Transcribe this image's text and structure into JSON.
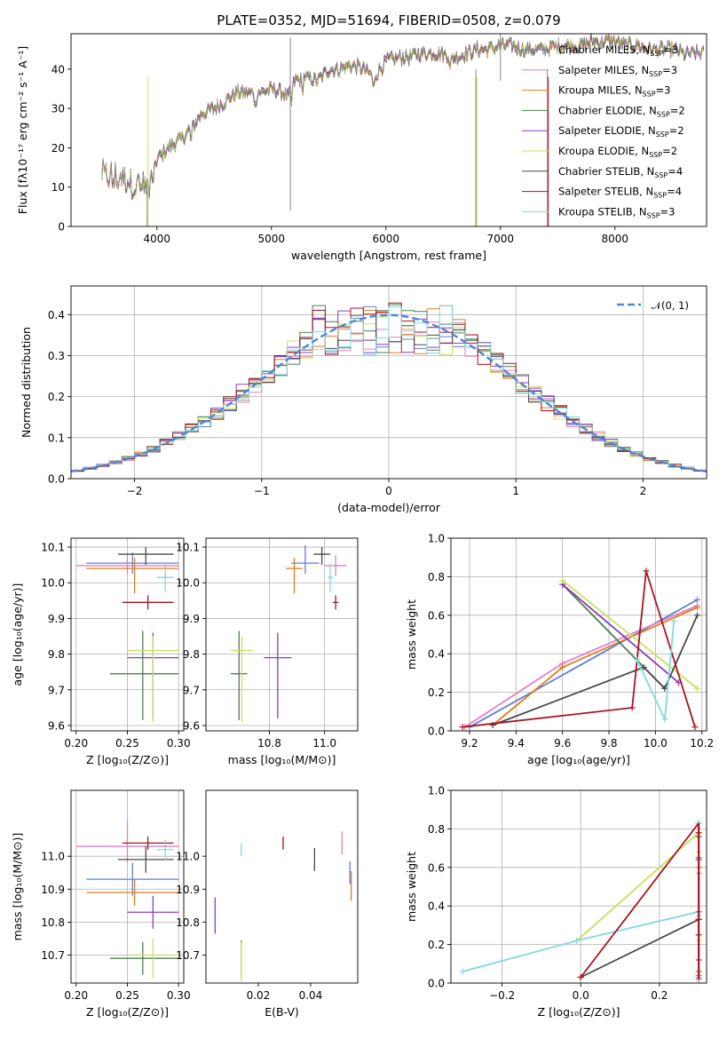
{
  "figure_title": "PLATE=0352, MJD=51694, FIBERID=0508, z=0.079",
  "colors": {
    "Chabrier MILES": "#5b7fd9",
    "Salpeter MILES": "#e47fc2",
    "Kroupa MILES": "#e07b1f",
    "Chabrier ELODIE": "#4f7f4f",
    "Salpeter ELODIE": "#8d3db8",
    "Kroupa ELODIE": "#c8e05a",
    "Chabrier STELIB": "#4a4a4a",
    "Salpeter STELIB": "#a8141e",
    "Kroupa STELIB": "#7fd9e0",
    "normal": "#4f84d8"
  },
  "chart_data": [
    {
      "type": "line",
      "id": "spectrum",
      "xlabel": "wavelength [Angstrom, rest frame]",
      "ylabel": "Flux [fλ10⁻¹⁷ erg cm⁻² s⁻¹ A⁻¹]",
      "xlim": [
        3250,
        8800
      ],
      "ylim": [
        0,
        49
      ],
      "xticks": [
        4000,
        5000,
        6000,
        7000,
        8000
      ],
      "yticks": [
        0,
        10,
        20,
        30,
        40
      ],
      "grid": false,
      "legend_position": "top-right",
      "continuum": {
        "wavelength": [
          3520,
          3600,
          3700,
          3800,
          3900,
          3950,
          4000,
          4100,
          4200,
          4300,
          4400,
          4500,
          4600,
          4700,
          4800,
          4900,
          5000,
          5100,
          5150,
          5200,
          5300,
          5400,
          5500,
          5600,
          5700,
          5800,
          5900,
          6000,
          6100,
          6200,
          6300,
          6400,
          6500,
          6600,
          6700,
          6800,
          6900,
          7000,
          7100,
          7200,
          7300,
          7400,
          7500,
          7600,
          7700,
          7800,
          7900,
          8000,
          8100,
          8200,
          8300,
          8400,
          8500,
          8600,
          8700,
          8780
        ],
        "flux": [
          13,
          12,
          12,
          11,
          10,
          13,
          17,
          20,
          22,
          25,
          29,
          30,
          32,
          34,
          34,
          34,
          35,
          34,
          33,
          37,
          38,
          37,
          40,
          40,
          41,
          40,
          38,
          42,
          43,
          43,
          44,
          44,
          44,
          43,
          44,
          45,
          45,
          46,
          46,
          45,
          45,
          45,
          46,
          46,
          46,
          47,
          47,
          47,
          46,
          46,
          45,
          45,
          45,
          44,
          44,
          44
        ]
      },
      "series": [
        {
          "name": "Chabrier MILES, N$_{SSP}$=3",
          "label": "Chabrier MILES, N",
          "sub": "SSP",
          "suffix": "=3"
        },
        {
          "name": "Salpeter MILES, N$_{SSP}$=3",
          "label": "Salpeter MILES, N",
          "sub": "SSP",
          "suffix": "=3"
        },
        {
          "name": "Kroupa MILES, N$_{SSP}$=3",
          "label": "Kroupa MILES, N",
          "sub": "SSP",
          "suffix": "=3"
        },
        {
          "name": "Chabrier ELODIE, N$_{SSP}$=2",
          "label": "Chabrier ELODIE, N",
          "sub": "SSP",
          "suffix": "=2"
        },
        {
          "name": "Salpeter ELODIE, N$_{SSP}$=2",
          "label": "Salpeter ELODIE, N",
          "sub": "SSP",
          "suffix": "=2"
        },
        {
          "name": "Kroupa ELODIE, N$_{SSP}$=2",
          "label": "Kroupa ELODIE, N",
          "sub": "SSP",
          "suffix": "=2"
        },
        {
          "name": "Chabrier STELIB, N$_{SSP}$=4",
          "label": "Chabrier STELIB, N",
          "sub": "SSP",
          "suffix": "=4"
        },
        {
          "name": "Salpeter STELIB, N$_{SSP}$=4",
          "label": "Salpeter STELIB, N",
          "sub": "SSP",
          "suffix": "=4"
        },
        {
          "name": "Kroupa STELIB, N$_{SSP}$=3",
          "label": "Kroupa STELIB, N",
          "sub": "SSP",
          "suffix": "=3"
        }
      ],
      "spikes": [
        {
          "x": 5165,
          "y0": 4,
          "y1": 48
        },
        {
          "x": 3915,
          "y0": 0,
          "y1": 9
        },
        {
          "x": 6785,
          "y0": 0,
          "y1": 40
        },
        {
          "x": 7410,
          "y0": 0,
          "y1": 40
        },
        {
          "x": 7000,
          "y0": 37,
          "y1": 49
        }
      ]
    },
    {
      "type": "area",
      "id": "residuals",
      "xlabel": "(data-model)/error",
      "ylabel": "Normed distribution",
      "xlim": [
        -2.5,
        2.5
      ],
      "ylim": [
        0,
        0.47
      ],
      "xticks": [
        -2,
        -1,
        0,
        1,
        2
      ],
      "yticks": [
        0.0,
        0.1,
        0.2,
        0.3,
        0.4
      ],
      "grid": true,
      "legend_position": "top-right",
      "legend": "N(0,1)",
      "normal_curve": {
        "mean": 0,
        "sigma": 1,
        "label_prefix": "𝒩",
        "label_args": "(0, 1)"
      },
      "bin_width": 0.1,
      "bin_start": -2.5
    },
    {
      "type": "scatter",
      "id": "age_vs_Z",
      "xlabel": "Z [log₁₀(Z/Z⊙)]",
      "ylabel": "age  [log₁₀(age/yr)]",
      "xlim": [
        0.195,
        0.305
      ],
      "ylim": [
        9.585,
        10.125
      ],
      "xticks": [
        0.2,
        0.25,
        0.3
      ],
      "yticks": [
        9.6,
        9.7,
        9.8,
        9.9,
        10.0,
        10.1
      ],
      "grid": true,
      "points": [
        {
          "series": "Chabrier MILES",
          "x": 0.255,
          "y": 10.055,
          "xerr": [
            0.045,
            0.045
          ],
          "yerr": [
            0.03,
            0.03
          ]
        },
        {
          "series": "Salpeter MILES",
          "x": 0.25,
          "y": 10.048,
          "xerr": [
            0.05,
            0.05
          ],
          "yerr": [
            0.025,
            0.03
          ]
        },
        {
          "series": "Kroupa MILES",
          "x": 0.257,
          "y": 10.04,
          "xerr": [
            0.047,
            0.043
          ],
          "yerr": [
            0.07,
            0.03
          ]
        },
        {
          "series": "Chabrier ELODIE",
          "x": 0.265,
          "y": 9.745,
          "xerr": [
            0.032,
            0.035
          ],
          "yerr": [
            0.13,
            0.12
          ]
        },
        {
          "series": "Salpeter ELODIE",
          "x": 0.275,
          "y": 9.79,
          "xerr": [
            0.025,
            0.025
          ],
          "yerr": [
            0.17,
            0.07
          ]
        },
        {
          "series": "Kroupa ELODIE",
          "x": 0.275,
          "y": 9.81,
          "xerr": [
            0.025,
            0.025
          ],
          "yerr": [
            0.2,
            0.04
          ]
        },
        {
          "series": "Chabrier STELIB",
          "x": 0.268,
          "y": 10.08,
          "xerr": [
            0.027,
            0.027
          ],
          "yerr": [
            0.03,
            0.02
          ]
        },
        {
          "series": "Salpeter STELIB",
          "x": 0.27,
          "y": 9.945,
          "xerr": [
            0.025,
            0.025
          ],
          "yerr": [
            0.02,
            0.02
          ]
        },
        {
          "series": "Kroupa STELIB",
          "x": 0.287,
          "y": 10.015,
          "xerr": [
            0.008,
            0.008
          ],
          "yerr": [
            0.04,
            0.04
          ]
        }
      ]
    },
    {
      "type": "scatter",
      "id": "age_vs_mass",
      "xlabel": "mass [log₁₀(M/M⊙)]",
      "ylabel": "",
      "xlim": [
        10.57,
        11.12
      ],
      "ylim": [
        9.585,
        10.125
      ],
      "xticks": [
        10.8,
        11.0
      ],
      "yticks": [
        9.6,
        9.7,
        9.8,
        9.9,
        10.0,
        10.1
      ],
      "grid": true,
      "points": [
        {
          "series": "Chabrier MILES",
          "x": 10.93,
          "y": 10.055,
          "xerr": [
            0.05,
            0.05
          ],
          "yerr": [
            0.03,
            0.05
          ]
        },
        {
          "series": "Salpeter MILES",
          "x": 11.04,
          "y": 10.048,
          "xerr": [
            0.04,
            0.04
          ],
          "yerr": [
            0.03,
            0.03
          ]
        },
        {
          "series": "Kroupa MILES",
          "x": 10.89,
          "y": 10.04,
          "xerr": [
            0.03,
            0.03
          ],
          "yerr": [
            0.07,
            0.03
          ]
        },
        {
          "series": "Chabrier ELODIE",
          "x": 10.69,
          "y": 9.745,
          "xerr": [
            0.03,
            0.03
          ],
          "yerr": [
            0.13,
            0.12
          ]
        },
        {
          "series": "Salpeter ELODIE",
          "x": 10.83,
          "y": 9.79,
          "xerr": [
            0.05,
            0.05
          ],
          "yerr": [
            0.17,
            0.07
          ]
        },
        {
          "series": "Kroupa ELODIE",
          "x": 10.7,
          "y": 9.81,
          "xerr": [
            0.04,
            0.04
          ],
          "yerr": [
            0.2,
            0.04
          ]
        },
        {
          "series": "Chabrier STELIB",
          "x": 10.99,
          "y": 10.08,
          "xerr": [
            0.03,
            0.03
          ],
          "yerr": [
            0.03,
            0.02
          ]
        },
        {
          "series": "Salpeter STELIB",
          "x": 11.04,
          "y": 9.945,
          "xerr": [
            0.01,
            0.01
          ],
          "yerr": [
            0.02,
            0.02
          ]
        },
        {
          "series": "Kroupa STELIB",
          "x": 11.02,
          "y": 10.015,
          "xerr": [
            0.01,
            0.01
          ],
          "yerr": [
            0.04,
            0.04
          ]
        }
      ]
    },
    {
      "type": "line",
      "id": "weight_vs_age",
      "xlabel": "age  [log₁₀(age/yr)]",
      "ylabel": "mass weight",
      "xlim": [
        9.12,
        10.22
      ],
      "ylim": [
        0,
        1
      ],
      "xticks": [
        9.2,
        9.4,
        9.6,
        9.8,
        10.0,
        10.2
      ],
      "yticks": [
        0.0,
        0.2,
        0.4,
        0.6,
        0.8,
        1.0
      ],
      "grid": true,
      "series": [
        {
          "series": "Chabrier MILES",
          "x": [
            9.2,
            10.18
          ],
          "y": [
            0.02,
            0.68
          ]
        },
        {
          "series": "Salpeter MILES",
          "x": [
            9.18,
            9.6,
            10.18
          ],
          "y": [
            0.02,
            0.35,
            0.65
          ]
        },
        {
          "series": "Kroupa MILES",
          "x": [
            9.3,
            9.6,
            10.18
          ],
          "y": [
            0.03,
            0.33,
            0.64
          ]
        },
        {
          "series": "Chabrier ELODIE",
          "x": [
            9.6,
            10.04
          ],
          "y": [
            0.76,
            0.22
          ]
        },
        {
          "series": "Salpeter ELODIE",
          "x": [
            9.6,
            10.1
          ],
          "y": [
            0.76,
            0.25
          ]
        },
        {
          "series": "Kroupa ELODIE",
          "x": [
            9.6,
            10.18
          ],
          "y": [
            0.78,
            0.22
          ]
        },
        {
          "series": "Chabrier STELIB",
          "x": [
            9.3,
            9.95,
            10.04,
            10.18
          ],
          "y": [
            0.03,
            0.33,
            0.22,
            0.6
          ]
        },
        {
          "series": "Salpeter STELIB",
          "x": [
            9.17,
            9.9,
            9.96,
            10.17
          ],
          "y": [
            0.02,
            0.12,
            0.83,
            0.02
          ]
        },
        {
          "series": "Kroupa STELIB",
          "x": [
            9.92,
            10.04,
            10.08
          ],
          "y": [
            0.37,
            0.06,
            0.57
          ]
        }
      ]
    },
    {
      "type": "scatter",
      "id": "mass_vs_Z",
      "xlabel": "Z [log₁₀(Z/Z⊙)]",
      "ylabel": "mass [log₁₀(M/M⊙)]",
      "xlim": [
        0.195,
        0.305
      ],
      "ylim": [
        10.615,
        11.2
      ],
      "xticks": [
        0.2,
        0.25,
        0.3
      ],
      "yticks": [
        10.7,
        10.8,
        10.9,
        11.0
      ],
      "grid": true,
      "points": [
        {
          "series": "Chabrier MILES",
          "x": 0.255,
          "y": 10.93,
          "xerr": [
            0.045,
            0.045
          ],
          "yerr": [
            0.05,
            0.05
          ]
        },
        {
          "series": "Salpeter MILES",
          "x": 0.25,
          "y": 11.03,
          "xerr": [
            0.05,
            0.05
          ],
          "yerr": [
            0.05,
            0.08
          ]
        },
        {
          "series": "Kroupa MILES",
          "x": 0.257,
          "y": 10.89,
          "xerr": [
            0.047,
            0.043
          ],
          "yerr": [
            0.04,
            0.04
          ]
        },
        {
          "series": "Chabrier ELODIE",
          "x": 0.265,
          "y": 10.69,
          "xerr": [
            0.032,
            0.035
          ],
          "yerr": [
            0.05,
            0.05
          ]
        },
        {
          "series": "Salpeter ELODIE",
          "x": 0.275,
          "y": 10.83,
          "xerr": [
            0.025,
            0.025
          ],
          "yerr": [
            0.05,
            0.05
          ]
        },
        {
          "series": "Kroupa ELODIE",
          "x": 0.275,
          "y": 10.7,
          "xerr": [
            0.025,
            0.025
          ],
          "yerr": [
            0.07,
            0.05
          ]
        },
        {
          "series": "Chabrier STELIB",
          "x": 0.268,
          "y": 10.99,
          "xerr": [
            0.027,
            0.027
          ],
          "yerr": [
            0.04,
            0.04
          ]
        },
        {
          "series": "Salpeter STELIB",
          "x": 0.27,
          "y": 11.04,
          "xerr": [
            0.025,
            0.025
          ],
          "yerr": [
            0.02,
            0.02
          ]
        },
        {
          "series": "Kroupa STELIB",
          "x": 0.287,
          "y": 11.02,
          "xerr": [
            0.008,
            0.008
          ],
          "yerr": [
            0.03,
            0.03
          ]
        }
      ]
    },
    {
      "type": "scatter",
      "id": "mass_vs_ebv",
      "xlabel": "E(B-V)",
      "ylabel": "",
      "xlim": [
        0.0,
        0.058
      ],
      "ylim": [
        10.615,
        11.2
      ],
      "xticks": [
        0.02,
        0.04
      ],
      "yticks": [
        10.7,
        10.8,
        10.9,
        11.0
      ],
      "grid": false,
      "points": [
        {
          "series": "Chabrier MILES",
          "x": 0.055,
          "y": 10.95,
          "xerr": [
            0,
            0
          ],
          "yerr": [
            0.035,
            0.035
          ]
        },
        {
          "series": "Salpeter MILES",
          "x": 0.052,
          "y": 11.04,
          "xerr": [
            0,
            0
          ],
          "yerr": [
            0.035,
            0.035
          ]
        },
        {
          "series": "Kroupa MILES",
          "x": 0.0555,
          "y": 10.91,
          "xerr": [
            0,
            0
          ],
          "yerr": [
            0.045,
            0.045
          ]
        },
        {
          "series": "Chabrier ELODIE",
          "x": 0.0135,
          "y": 10.69,
          "xerr": [
            0,
            0
          ],
          "yerr": [
            0.055,
            0.055
          ]
        },
        {
          "series": "Salpeter ELODIE",
          "x": 0.0035,
          "y": 10.82,
          "xerr": [
            0,
            0
          ],
          "yerr": [
            0.055,
            0.055
          ]
        },
        {
          "series": "Kroupa ELODIE",
          "x": 0.0135,
          "y": 10.68,
          "xerr": [
            0,
            0
          ],
          "yerr": [
            0.06,
            0.06
          ]
        },
        {
          "series": "Chabrier STELIB",
          "x": 0.0415,
          "y": 10.99,
          "xerr": [
            0,
            0
          ],
          "yerr": [
            0.035,
            0.035
          ]
        },
        {
          "series": "Salpeter STELIB",
          "x": 0.0295,
          "y": 11.04,
          "xerr": [
            0,
            0
          ],
          "yerr": [
            0.02,
            0.02
          ]
        },
        {
          "series": "Kroupa STELIB",
          "x": 0.0135,
          "y": 11.02,
          "xerr": [
            0,
            0
          ],
          "yerr": [
            0.02,
            0.02
          ]
        }
      ]
    },
    {
      "type": "line",
      "id": "weight_vs_Z",
      "xlabel": "Z [log₁₀(Z/Z⊙)]",
      "ylabel": "mass weight",
      "xlim": [
        -0.33,
        0.32
      ],
      "ylim": [
        0,
        1
      ],
      "xticks": [
        -0.2,
        0.0,
        0.2
      ],
      "yticks": [
        0.0,
        0.2,
        0.4,
        0.6,
        0.8,
        1.0
      ],
      "grid": true,
      "series": [
        {
          "series": "Kroupa ELODIE",
          "x": [
            -0.01,
            0.3
          ],
          "y": [
            0.22,
            0.78
          ]
        },
        {
          "series": "Kroupa STELIB",
          "x": [
            -0.3,
            -0.01,
            0.3
          ],
          "y": [
            0.06,
            0.22,
            0.37
          ]
        },
        {
          "series": "Chabrier STELIB",
          "x": [
            0.0,
            0.3
          ],
          "y": [
            0.03,
            0.33
          ]
        },
        {
          "series": "Salpeter STELIB",
          "x": [
            0.0,
            0.3
          ],
          "y": [
            0.03,
            0.83
          ]
        }
      ],
      "markers_at_max": [
        0.02,
        0.03,
        0.04,
        0.06,
        0.12,
        0.22,
        0.25,
        0.33,
        0.35,
        0.37,
        0.57,
        0.6,
        0.64,
        0.65,
        0.68,
        0.76,
        0.78,
        0.83
      ]
    }
  ]
}
